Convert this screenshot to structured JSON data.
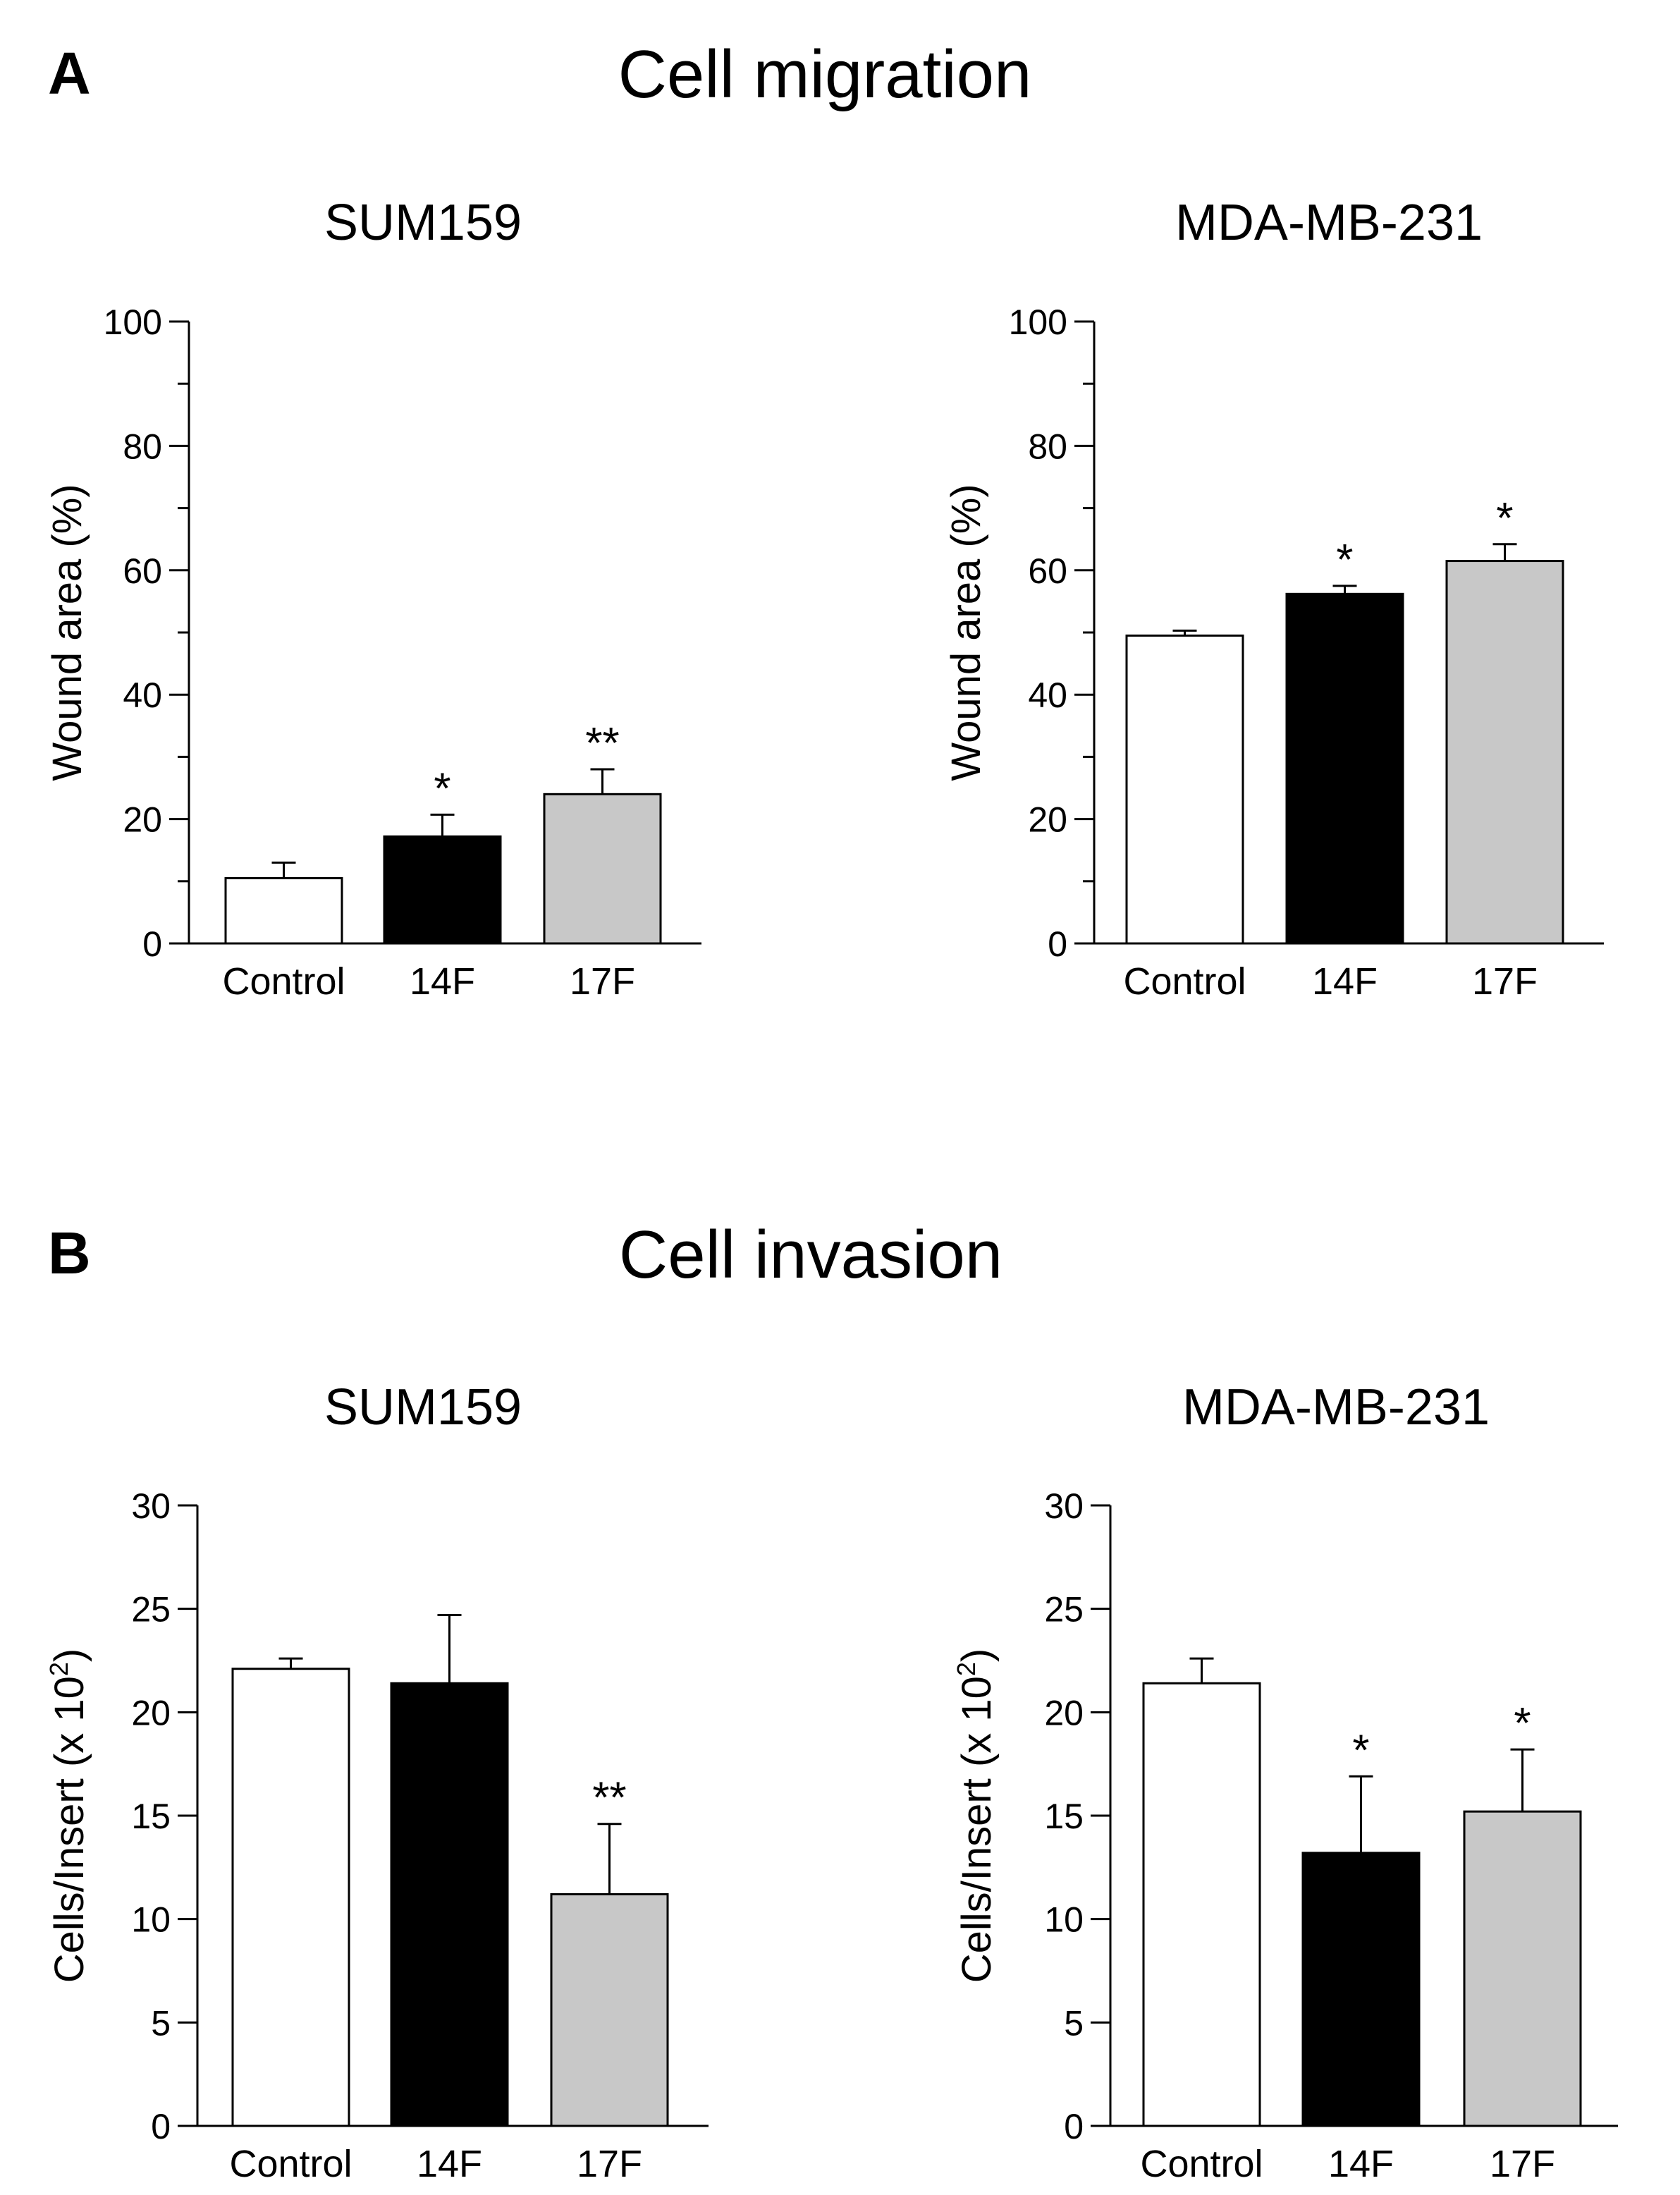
{
  "panels": {
    "A": {
      "letter": "A",
      "title": "Cell migration"
    },
    "B": {
      "letter": "B",
      "title": "Cell invasion"
    }
  },
  "colors": {
    "Control": "#ffffff",
    "14F": "#000000",
    "17F": "#c8c8c8",
    "stroke": "#000000"
  },
  "chart_data": [
    {
      "type": "bar",
      "title": "SUM159",
      "ylabel": "Wound area (%)",
      "categories": [
        "Control",
        "14F",
        "17F"
      ],
      "values": [
        10.5,
        17.2,
        24.0
      ],
      "errors": [
        2.5,
        3.5,
        4.0
      ],
      "significance": [
        "",
        "*",
        "**"
      ],
      "ylim": [
        0,
        100
      ],
      "ticks": [
        0,
        20,
        40,
        60,
        80,
        100
      ],
      "minor_ticks": [
        10,
        30,
        50,
        70,
        90
      ]
    },
    {
      "type": "bar",
      "title": "MDA-MB-231",
      "ylabel": "Wound area (%)",
      "categories": [
        "Control",
        "14F",
        "17F"
      ],
      "values": [
        49.5,
        56.2,
        61.5
      ],
      "errors": [
        0.8,
        1.3,
        2.7
      ],
      "significance": [
        "",
        "*",
        "*"
      ],
      "ylim": [
        0,
        100
      ],
      "ticks": [
        0,
        20,
        40,
        60,
        80,
        100
      ],
      "minor_ticks": [
        10,
        30,
        50,
        70,
        90
      ]
    },
    {
      "type": "bar",
      "title": "SUM159",
      "ylabel": "Cells/Insert (x 10",
      "ylabel_sup": "2",
      "ylabel_end": ")",
      "categories": [
        "Control",
        "14F",
        "17F"
      ],
      "values": [
        22.1,
        21.4,
        11.2
      ],
      "errors": [
        0.5,
        3.3,
        3.4
      ],
      "significance": [
        "",
        "",
        "**"
      ],
      "ylim": [
        0,
        30
      ],
      "ticks": [
        0,
        5,
        10,
        15,
        20,
        25,
        30
      ],
      "minor_ticks": []
    },
    {
      "type": "bar",
      "title": "MDA-MB-231",
      "ylabel": "Cells/Insert (x 10",
      "ylabel_sup": "2",
      "ylabel_end": ")",
      "categories": [
        "Control",
        "14F",
        "17F"
      ],
      "values": [
        21.4,
        13.2,
        15.2
      ],
      "errors": [
        1.2,
        3.7,
        3.0
      ],
      "significance": [
        "",
        "*",
        "*"
      ],
      "ylim": [
        0,
        30
      ],
      "ticks": [
        0,
        5,
        10,
        15,
        20,
        25,
        30
      ],
      "minor_ticks": []
    }
  ]
}
